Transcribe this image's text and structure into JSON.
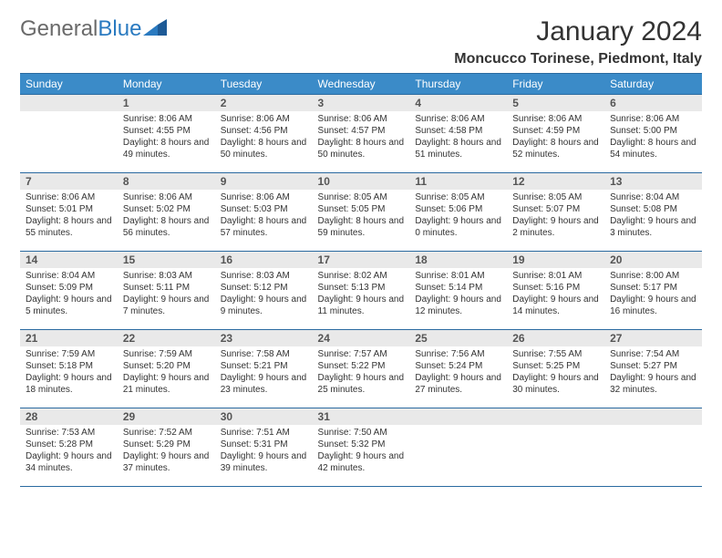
{
  "logo": {
    "text1": "General",
    "text2": "Blue"
  },
  "title": "January 2024",
  "subtitle": "Moncucco Torinese, Piedmont, Italy",
  "colors": {
    "header_bg": "#3b8bc8",
    "header_text": "#ffffff",
    "border": "#2a6aa0",
    "daynum_bg": "#e9e9e9",
    "body_text": "#333333",
    "logo_gray": "#6a6a6a",
    "logo_blue": "#2a7ac0",
    "page_bg": "#ffffff"
  },
  "typography": {
    "title_fontsize": 30,
    "subtitle_fontsize": 16,
    "header_fontsize": 12,
    "daynum_fontsize": 12,
    "content_fontsize": 10
  },
  "layout": {
    "columns": 7,
    "rows": 5,
    "start_day_index": 1
  },
  "weekdays": [
    "Sunday",
    "Monday",
    "Tuesday",
    "Wednesday",
    "Thursday",
    "Friday",
    "Saturday"
  ],
  "days": [
    {
      "n": 1,
      "sunrise": "8:06 AM",
      "sunset": "4:55 PM",
      "daylight": "8 hours and 49 minutes."
    },
    {
      "n": 2,
      "sunrise": "8:06 AM",
      "sunset": "4:56 PM",
      "daylight": "8 hours and 50 minutes."
    },
    {
      "n": 3,
      "sunrise": "8:06 AM",
      "sunset": "4:57 PM",
      "daylight": "8 hours and 50 minutes."
    },
    {
      "n": 4,
      "sunrise": "8:06 AM",
      "sunset": "4:58 PM",
      "daylight": "8 hours and 51 minutes."
    },
    {
      "n": 5,
      "sunrise": "8:06 AM",
      "sunset": "4:59 PM",
      "daylight": "8 hours and 52 minutes."
    },
    {
      "n": 6,
      "sunrise": "8:06 AM",
      "sunset": "5:00 PM",
      "daylight": "8 hours and 54 minutes."
    },
    {
      "n": 7,
      "sunrise": "8:06 AM",
      "sunset": "5:01 PM",
      "daylight": "8 hours and 55 minutes."
    },
    {
      "n": 8,
      "sunrise": "8:06 AM",
      "sunset": "5:02 PM",
      "daylight": "8 hours and 56 minutes."
    },
    {
      "n": 9,
      "sunrise": "8:06 AM",
      "sunset": "5:03 PM",
      "daylight": "8 hours and 57 minutes."
    },
    {
      "n": 10,
      "sunrise": "8:05 AM",
      "sunset": "5:05 PM",
      "daylight": "8 hours and 59 minutes."
    },
    {
      "n": 11,
      "sunrise": "8:05 AM",
      "sunset": "5:06 PM",
      "daylight": "9 hours and 0 minutes."
    },
    {
      "n": 12,
      "sunrise": "8:05 AM",
      "sunset": "5:07 PM",
      "daylight": "9 hours and 2 minutes."
    },
    {
      "n": 13,
      "sunrise": "8:04 AM",
      "sunset": "5:08 PM",
      "daylight": "9 hours and 3 minutes."
    },
    {
      "n": 14,
      "sunrise": "8:04 AM",
      "sunset": "5:09 PM",
      "daylight": "9 hours and 5 minutes."
    },
    {
      "n": 15,
      "sunrise": "8:03 AM",
      "sunset": "5:11 PM",
      "daylight": "9 hours and 7 minutes."
    },
    {
      "n": 16,
      "sunrise": "8:03 AM",
      "sunset": "5:12 PM",
      "daylight": "9 hours and 9 minutes."
    },
    {
      "n": 17,
      "sunrise": "8:02 AM",
      "sunset": "5:13 PM",
      "daylight": "9 hours and 11 minutes."
    },
    {
      "n": 18,
      "sunrise": "8:01 AM",
      "sunset": "5:14 PM",
      "daylight": "9 hours and 12 minutes."
    },
    {
      "n": 19,
      "sunrise": "8:01 AM",
      "sunset": "5:16 PM",
      "daylight": "9 hours and 14 minutes."
    },
    {
      "n": 20,
      "sunrise": "8:00 AM",
      "sunset": "5:17 PM",
      "daylight": "9 hours and 16 minutes."
    },
    {
      "n": 21,
      "sunrise": "7:59 AM",
      "sunset": "5:18 PM",
      "daylight": "9 hours and 18 minutes."
    },
    {
      "n": 22,
      "sunrise": "7:59 AM",
      "sunset": "5:20 PM",
      "daylight": "9 hours and 21 minutes."
    },
    {
      "n": 23,
      "sunrise": "7:58 AM",
      "sunset": "5:21 PM",
      "daylight": "9 hours and 23 minutes."
    },
    {
      "n": 24,
      "sunrise": "7:57 AM",
      "sunset": "5:22 PM",
      "daylight": "9 hours and 25 minutes."
    },
    {
      "n": 25,
      "sunrise": "7:56 AM",
      "sunset": "5:24 PM",
      "daylight": "9 hours and 27 minutes."
    },
    {
      "n": 26,
      "sunrise": "7:55 AM",
      "sunset": "5:25 PM",
      "daylight": "9 hours and 30 minutes."
    },
    {
      "n": 27,
      "sunrise": "7:54 AM",
      "sunset": "5:27 PM",
      "daylight": "9 hours and 32 minutes."
    },
    {
      "n": 28,
      "sunrise": "7:53 AM",
      "sunset": "5:28 PM",
      "daylight": "9 hours and 34 minutes."
    },
    {
      "n": 29,
      "sunrise": "7:52 AM",
      "sunset": "5:29 PM",
      "daylight": "9 hours and 37 minutes."
    },
    {
      "n": 30,
      "sunrise": "7:51 AM",
      "sunset": "5:31 PM",
      "daylight": "9 hours and 39 minutes."
    },
    {
      "n": 31,
      "sunrise": "7:50 AM",
      "sunset": "5:32 PM",
      "daylight": "9 hours and 42 minutes."
    }
  ],
  "labels": {
    "sunrise": "Sunrise:",
    "sunset": "Sunset:",
    "daylight": "Daylight:"
  }
}
